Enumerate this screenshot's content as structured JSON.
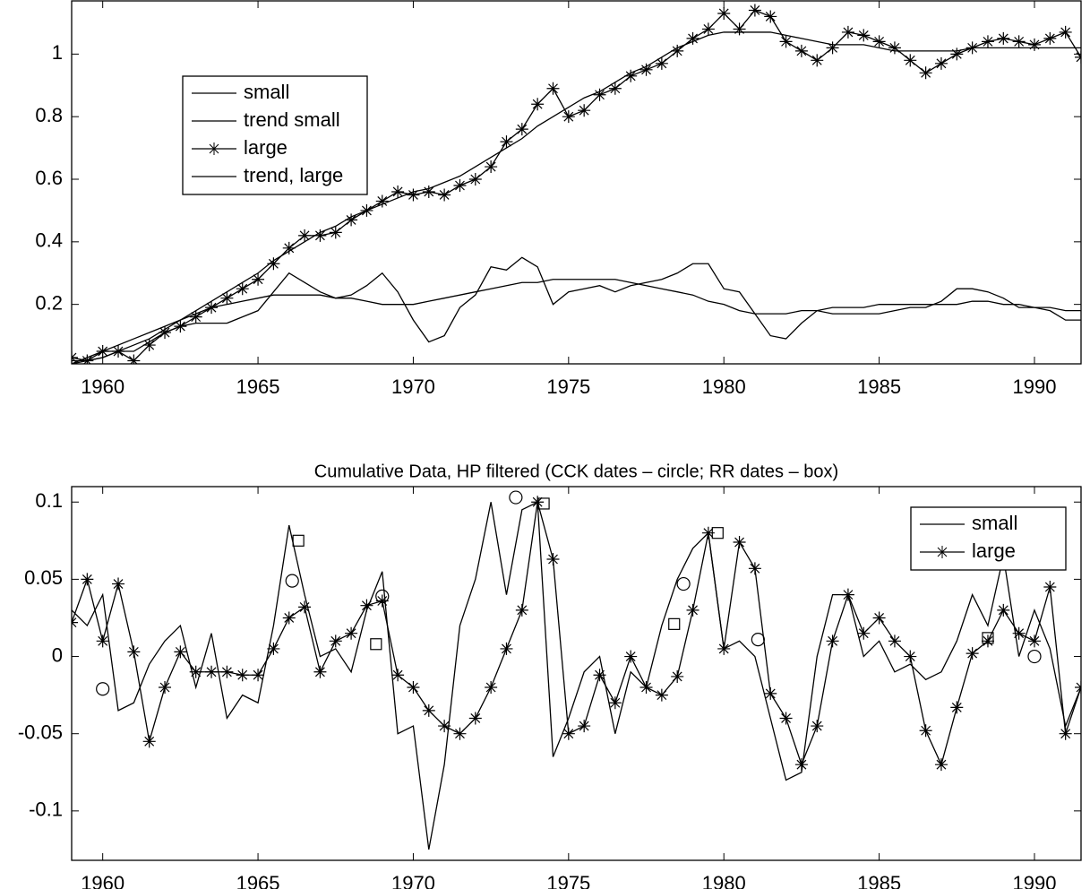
{
  "chart_data": [
    {
      "type": "line",
      "x": [
        1959,
        1959.5,
        1960,
        1960.5,
        1961,
        1961.5,
        1962,
        1962.5,
        1963,
        1963.5,
        1964,
        1964.5,
        1965,
        1965.5,
        1966,
        1966.5,
        1967,
        1967.5,
        1968,
        1968.5,
        1969,
        1969.5,
        1970,
        1970.5,
        1971,
        1971.5,
        1972,
        1972.5,
        1973,
        1973.5,
        1974,
        1974.5,
        1975,
        1975.5,
        1976,
        1976.5,
        1977,
        1977.5,
        1978,
        1978.5,
        1979,
        1979.5,
        1980,
        1980.5,
        1981,
        1981.5,
        1982,
        1982.5,
        1983,
        1983.5,
        1984,
        1984.5,
        1985,
        1985.5,
        1986,
        1986.5,
        1987,
        1987.5,
        1988,
        1988.5,
        1989,
        1989.5,
        1990,
        1990.5,
        1991,
        1991.5
      ],
      "series": [
        {
          "name": "small",
          "color": "#000000",
          "marker": "none",
          "values": [
            0.02,
            0.02,
            0.03,
            0.05,
            0.05,
            0.08,
            0.11,
            0.13,
            0.14,
            0.14,
            0.14,
            0.16,
            0.18,
            0.24,
            0.3,
            0.27,
            0.24,
            0.22,
            0.23,
            0.26,
            0.3,
            0.24,
            0.15,
            0.08,
            0.1,
            0.19,
            0.23,
            0.32,
            0.31,
            0.35,
            0.32,
            0.2,
            0.24,
            0.25,
            0.26,
            0.24,
            0.26,
            0.27,
            0.28,
            0.3,
            0.33,
            0.33,
            0.25,
            0.24,
            0.17,
            0.1,
            0.09,
            0.14,
            0.18,
            0.17,
            0.17,
            0.17,
            0.17,
            0.18,
            0.19,
            0.19,
            0.21,
            0.25,
            0.25,
            0.24,
            0.22,
            0.19,
            0.19,
            0.18,
            0.15,
            0.15
          ]
        },
        {
          "name": "trend small",
          "color": "#000000",
          "marker": "none",
          "values": [
            0.01,
            0.03,
            0.05,
            0.07,
            0.09,
            0.11,
            0.13,
            0.15,
            0.17,
            0.19,
            0.2,
            0.21,
            0.22,
            0.23,
            0.23,
            0.23,
            0.23,
            0.22,
            0.22,
            0.21,
            0.2,
            0.2,
            0.2,
            0.21,
            0.22,
            0.23,
            0.24,
            0.25,
            0.26,
            0.27,
            0.27,
            0.28,
            0.28,
            0.28,
            0.28,
            0.28,
            0.27,
            0.26,
            0.25,
            0.24,
            0.23,
            0.21,
            0.2,
            0.18,
            0.17,
            0.17,
            0.17,
            0.18,
            0.18,
            0.19,
            0.19,
            0.19,
            0.2,
            0.2,
            0.2,
            0.2,
            0.2,
            0.2,
            0.21,
            0.21,
            0.2,
            0.2,
            0.19,
            0.19,
            0.18,
            0.18
          ]
        },
        {
          "name": "large",
          "color": "#000000",
          "marker": "star",
          "values": [
            0.03,
            0.02,
            0.05,
            0.05,
            0.02,
            0.07,
            0.11,
            0.13,
            0.16,
            0.19,
            0.22,
            0.25,
            0.28,
            0.33,
            0.38,
            0.42,
            0.42,
            0.43,
            0.47,
            0.5,
            0.53,
            0.56,
            0.55,
            0.56,
            0.55,
            0.58,
            0.6,
            0.64,
            0.72,
            0.76,
            0.84,
            0.89,
            0.8,
            0.82,
            0.87,
            0.89,
            0.93,
            0.95,
            0.97,
            1.01,
            1.05,
            1.08,
            1.13,
            1.08,
            1.14,
            1.12,
            1.04,
            1.01,
            0.98,
            1.02,
            1.07,
            1.06,
            1.04,
            1.02,
            0.98,
            0.94,
            0.97,
            1.0,
            1.02,
            1.04,
            1.05,
            1.04,
            1.03,
            1.05,
            1.07,
            0.99
          ]
        },
        {
          "name": "trend, large",
          "color": "#000000",
          "marker": "none",
          "values": [
            0.01,
            0.02,
            0.03,
            0.05,
            0.07,
            0.09,
            0.12,
            0.15,
            0.18,
            0.21,
            0.24,
            0.27,
            0.3,
            0.34,
            0.37,
            0.4,
            0.43,
            0.45,
            0.48,
            0.5,
            0.52,
            0.54,
            0.56,
            0.57,
            0.59,
            0.61,
            0.64,
            0.67,
            0.7,
            0.73,
            0.77,
            0.8,
            0.83,
            0.86,
            0.88,
            0.91,
            0.94,
            0.96,
            0.99,
            1.02,
            1.04,
            1.06,
            1.07,
            1.07,
            1.07,
            1.07,
            1.06,
            1.05,
            1.04,
            1.03,
            1.03,
            1.03,
            1.02,
            1.01,
            1.01,
            1.01,
            1.01,
            1.01,
            1.02,
            1.02,
            1.02,
            1.02,
            1.02,
            1.02,
            1.02,
            1.02
          ]
        }
      ],
      "xlim": [
        1959,
        1991.5
      ],
      "ylim": [
        0.01,
        1.17
      ],
      "xticks": [
        1960,
        1965,
        1970,
        1975,
        1980,
        1985,
        1990
      ],
      "yticks": [
        0.2,
        0.4,
        0.6,
        0.8,
        1
      ],
      "legend": "upper left"
    },
    {
      "type": "line",
      "title": "Cumulative Data, HP filtered (CCK dates – circle; RR dates – box)",
      "x": [
        1959,
        1959.5,
        1960,
        1960.5,
        1961,
        1961.5,
        1962,
        1962.5,
        1963,
        1963.5,
        1964,
        1964.5,
        1965,
        1965.5,
        1966,
        1966.5,
        1967,
        1967.5,
        1968,
        1968.5,
        1969,
        1969.5,
        1970,
        1970.5,
        1971,
        1971.5,
        1972,
        1972.5,
        1973,
        1973.5,
        1974,
        1974.5,
        1975,
        1975.5,
        1976,
        1976.5,
        1977,
        1977.5,
        1978,
        1978.5,
        1979,
        1979.5,
        1980,
        1980.5,
        1981,
        1981.5,
        1982,
        1982.5,
        1983,
        1983.5,
        1984,
        1984.5,
        1985,
        1985.5,
        1986,
        1986.5,
        1987,
        1987.5,
        1988,
        1988.5,
        1989,
        1989.5,
        1990,
        1990.5,
        1991,
        1991.5
      ],
      "series": [
        {
          "name": "small",
          "color": "#000000",
          "marker": "none",
          "values": [
            0.03,
            0.02,
            0.04,
            -0.035,
            -0.03,
            -0.005,
            0.01,
            0.02,
            -0.02,
            0.015,
            -0.04,
            -0.025,
            -0.03,
            0.02,
            0.085,
            0.04,
            0.0,
            0.005,
            -0.01,
            0.03,
            0.055,
            -0.05,
            -0.045,
            -0.125,
            -0.07,
            0.02,
            0.05,
            0.1,
            0.04,
            0.095,
            0.1,
            -0.065,
            -0.04,
            -0.01,
            0.0,
            -0.05,
            -0.01,
            -0.02,
            0.02,
            0.05,
            0.07,
            0.08,
            0.005,
            0.01,
            0.0,
            -0.04,
            -0.08,
            -0.075,
            0.0,
            0.04,
            0.04,
            0.0,
            0.01,
            -0.01,
            -0.005,
            -0.015,
            -0.01,
            0.01,
            0.04,
            0.02,
            0.065,
            0.0,
            0.03,
            0.005,
            -0.045,
            -0.02
          ]
        },
        {
          "name": "large",
          "color": "#000000",
          "marker": "star",
          "values": [
            0.022,
            0.05,
            0.01,
            0.047,
            0.003,
            -0.055,
            -0.02,
            0.003,
            -0.01,
            -0.01,
            -0.01,
            -0.012,
            -0.012,
            0.005,
            0.025,
            0.032,
            -0.01,
            0.01,
            0.015,
            0.033,
            0.036,
            -0.012,
            -0.02,
            -0.035,
            -0.045,
            -0.05,
            -0.04,
            -0.02,
            0.005,
            0.03,
            0.1,
            0.063,
            -0.05,
            -0.045,
            -0.012,
            -0.03,
            0.0,
            -0.02,
            -0.025,
            -0.013,
            0.03,
            0.08,
            0.005,
            0.074,
            0.057,
            -0.024,
            -0.04,
            -0.07,
            -0.045,
            0.01,
            0.04,
            0.015,
            0.025,
            0.01,
            0.0,
            -0.048,
            -0.07,
            -0.033,
            0.002,
            0.01,
            0.03,
            0.015,
            0.01,
            0.045,
            -0.05,
            -0.02
          ]
        }
      ],
      "highlights": [
        {
          "marker": "circle",
          "x": [
            1960,
            1966.1,
            1969,
            1973.3,
            1978.7,
            1981.1,
            1990
          ],
          "values": [
            -0.021,
            0.049,
            0.039,
            0.103,
            0.047,
            0.011,
            0
          ]
        },
        {
          "marker": "square",
          "x": [
            1966.3,
            1968.8,
            1974.2,
            1978.4,
            1979.8,
            1988.5
          ],
          "values": [
            0.075,
            0.008,
            0.099,
            0.021,
            0.08,
            0.012
          ]
        }
      ],
      "xlim": [
        1959,
        1991.5
      ],
      "ylim": [
        -0.132,
        0.11
      ],
      "xticks": [
        1960,
        1965,
        1970,
        1975,
        1980,
        1985,
        1990
      ],
      "yticks": [
        -0.1,
        -0.05,
        0,
        0.05,
        0.1
      ],
      "legend": "upper right"
    }
  ]
}
